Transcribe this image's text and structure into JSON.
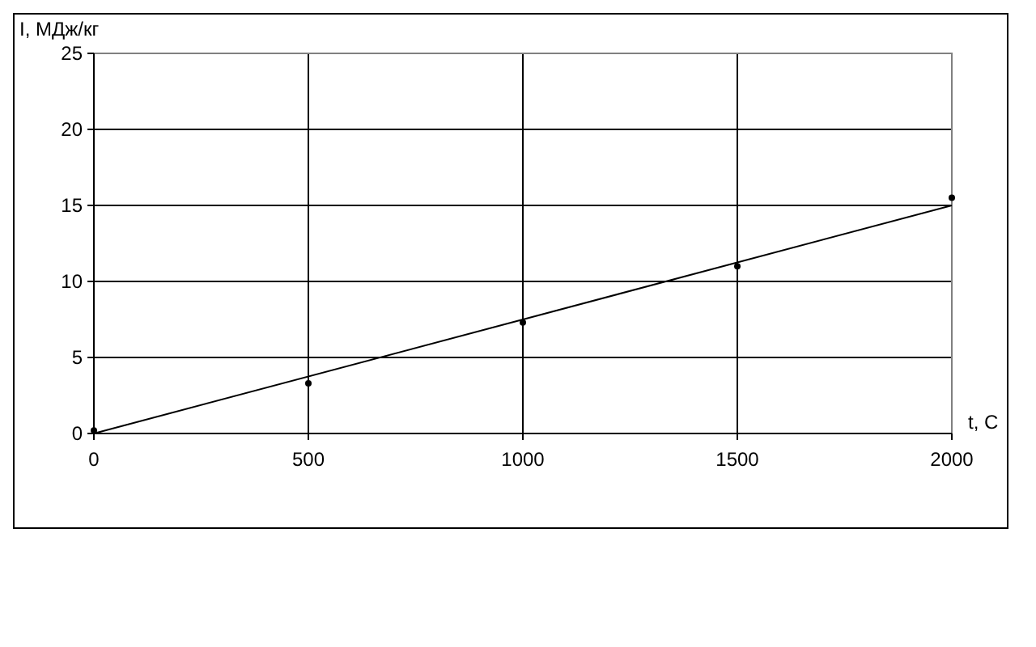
{
  "chart_data": {
    "type": "scatter",
    "ylabel": "I, МДж/кг",
    "xlabel": "t, C",
    "xlim": [
      0,
      2000
    ],
    "ylim": [
      0,
      25
    ],
    "xticks": [
      0,
      500,
      1000,
      1500,
      2000
    ],
    "yticks": [
      0,
      5,
      10,
      15,
      20,
      25
    ],
    "grid": true,
    "series": [
      {
        "marker": "circle",
        "color": "#000000",
        "x": [
          0,
          500,
          1000,
          1500,
          2000
        ],
        "values": [
          0.2,
          3.3,
          7.3,
          11.0,
          15.5
        ]
      },
      {
        "type": "line",
        "marker": "none",
        "color": "#000000",
        "x": [
          0,
          2000
        ],
        "values": [
          0,
          15
        ]
      }
    ]
  }
}
